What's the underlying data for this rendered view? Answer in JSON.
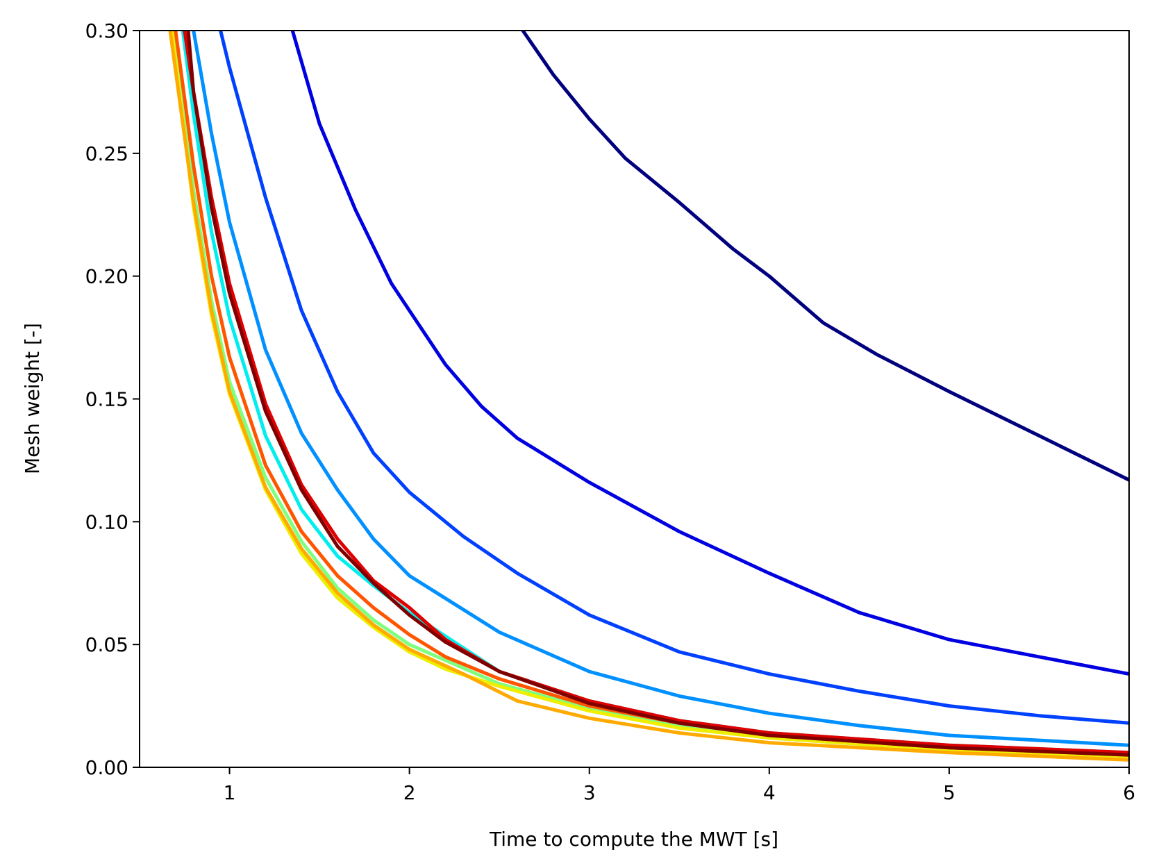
{
  "chart_data": {
    "type": "line",
    "title": "",
    "xlabel": "Time to compute the MWT [s]",
    "ylabel": "Mesh weight [-]",
    "xlim": [
      0.5,
      6
    ],
    "ylim": [
      0,
      0.3
    ],
    "x_ticks": [
      "1",
      "2",
      "3",
      "4",
      "5",
      "6"
    ],
    "x_tick_values": [
      1,
      2,
      3,
      4,
      5,
      6
    ],
    "y_ticks": [
      "0.00",
      "0.05",
      "0.10",
      "0.15",
      "0.20",
      "0.25",
      "0.30"
    ],
    "y_tick_values": [
      0,
      0.05,
      0.1,
      0.15,
      0.2,
      0.25,
      0.3
    ],
    "grid": false,
    "legend": "none",
    "series": [
      {
        "color": "#00007f",
        "x": [
          2.63,
          2.8,
          3.0,
          3.2,
          3.5,
          3.8,
          4.0,
          4.3,
          4.6,
          5.0,
          5.5,
          6.0
        ],
        "y": [
          0.3,
          0.282,
          0.264,
          0.248,
          0.23,
          0.211,
          0.2,
          0.181,
          0.168,
          0.153,
          0.135,
          0.117
        ]
      },
      {
        "color": "#0000e0",
        "x": [
          1.35,
          1.5,
          1.7,
          1.9,
          2.0,
          2.2,
          2.4,
          2.6,
          3.0,
          3.5,
          4.0,
          4.5,
          5.0,
          5.5,
          6.0
        ],
        "y": [
          0.3,
          0.262,
          0.227,
          0.197,
          0.186,
          0.164,
          0.147,
          0.134,
          0.116,
          0.096,
          0.079,
          0.063,
          0.052,
          0.045,
          0.038
        ]
      },
      {
        "color": "#0040ff",
        "x": [
          0.95,
          1.0,
          1.2,
          1.4,
          1.6,
          1.8,
          2.0,
          2.3,
          2.6,
          3.0,
          3.5,
          4.0,
          4.5,
          5.0,
          5.5,
          6.0
        ],
        "y": [
          0.3,
          0.285,
          0.232,
          0.186,
          0.153,
          0.128,
          0.112,
          0.094,
          0.079,
          0.062,
          0.047,
          0.038,
          0.031,
          0.025,
          0.021,
          0.018
        ]
      },
      {
        "color": "#0090ff",
        "x": [
          0.8,
          0.9,
          1.0,
          1.2,
          1.4,
          1.6,
          1.8,
          2.0,
          2.5,
          3.0,
          3.5,
          4.0,
          4.5,
          5.0,
          5.5,
          6.0
        ],
        "y": [
          0.3,
          0.258,
          0.222,
          0.17,
          0.136,
          0.113,
          0.093,
          0.078,
          0.055,
          0.039,
          0.029,
          0.022,
          0.017,
          0.013,
          0.011,
          0.009
        ]
      },
      {
        "color": "#00eeee",
        "x": [
          0.74,
          0.8,
          0.9,
          1.0,
          1.2,
          1.4,
          1.6,
          1.8,
          2.0,
          2.5,
          3.0,
          3.5,
          4.0,
          5.0,
          6.0
        ],
        "y": [
          0.3,
          0.266,
          0.218,
          0.183,
          0.135,
          0.105,
          0.086,
          0.074,
          0.063,
          0.039,
          0.027,
          0.019,
          0.014,
          0.009,
          0.006
        ]
      },
      {
        "color": "#7fff7f",
        "x": [
          0.69,
          0.8,
          0.9,
          1.0,
          1.2,
          1.4,
          1.6,
          1.8,
          2.0,
          2.5,
          3.0,
          3.5,
          4.0,
          5.0,
          6.0
        ],
        "y": [
          0.3,
          0.235,
          0.19,
          0.157,
          0.118,
          0.092,
          0.073,
          0.06,
          0.05,
          0.034,
          0.024,
          0.017,
          0.012,
          0.007,
          0.004
        ]
      },
      {
        "color": "#eeee00",
        "x": [
          0.68,
          0.8,
          0.9,
          1.0,
          1.2,
          1.4,
          1.6,
          1.8,
          2.0,
          2.2,
          2.5,
          3.0,
          3.5,
          4.0,
          5.0,
          6.0
        ],
        "y": [
          0.3,
          0.228,
          0.184,
          0.152,
          0.113,
          0.087,
          0.069,
          0.057,
          0.047,
          0.04,
          0.033,
          0.023,
          0.016,
          0.012,
          0.007,
          0.004
        ]
      },
      {
        "color": "#ffaa00",
        "x": [
          0.67,
          0.8,
          0.9,
          1.0,
          1.2,
          1.4,
          1.6,
          1.8,
          2.0,
          2.3,
          2.6,
          3.0,
          3.5,
          4.0,
          5.0,
          6.0
        ],
        "y": [
          0.3,
          0.23,
          0.186,
          0.153,
          0.114,
          0.089,
          0.071,
          0.058,
          0.048,
          0.038,
          0.027,
          0.02,
          0.014,
          0.01,
          0.006,
          0.003
        ]
      },
      {
        "color": "#ff5500",
        "x": [
          0.7,
          0.8,
          0.9,
          1.0,
          1.2,
          1.4,
          1.6,
          1.8,
          2.0,
          2.2,
          2.5,
          3.0,
          3.5,
          4.0,
          5.0,
          6.0
        ],
        "y": [
          0.3,
          0.245,
          0.2,
          0.167,
          0.123,
          0.096,
          0.078,
          0.065,
          0.054,
          0.045,
          0.036,
          0.025,
          0.018,
          0.013,
          0.008,
          0.005
        ]
      },
      {
        "color": "#e00000",
        "x": [
          0.75,
          0.8,
          0.9,
          1.0,
          1.2,
          1.4,
          1.6,
          1.8,
          2.0,
          2.2,
          2.5,
          3.0,
          3.5,
          4.0,
          5.0,
          6.0
        ],
        "y": [
          0.3,
          0.275,
          0.232,
          0.197,
          0.148,
          0.115,
          0.093,
          0.076,
          0.065,
          0.052,
          0.039,
          0.027,
          0.019,
          0.014,
          0.009,
          0.006
        ]
      },
      {
        "color": "#7f0000",
        "x": [
          0.77,
          0.8,
          0.9,
          1.0,
          1.2,
          1.4,
          1.6,
          1.8,
          2.0,
          2.2,
          2.5,
          3.0,
          3.5,
          4.0,
          5.0,
          6.0
        ],
        "y": [
          0.3,
          0.275,
          0.228,
          0.193,
          0.145,
          0.113,
          0.09,
          0.075,
          0.062,
          0.051,
          0.039,
          0.026,
          0.018,
          0.013,
          0.008,
          0.005
        ]
      }
    ]
  }
}
